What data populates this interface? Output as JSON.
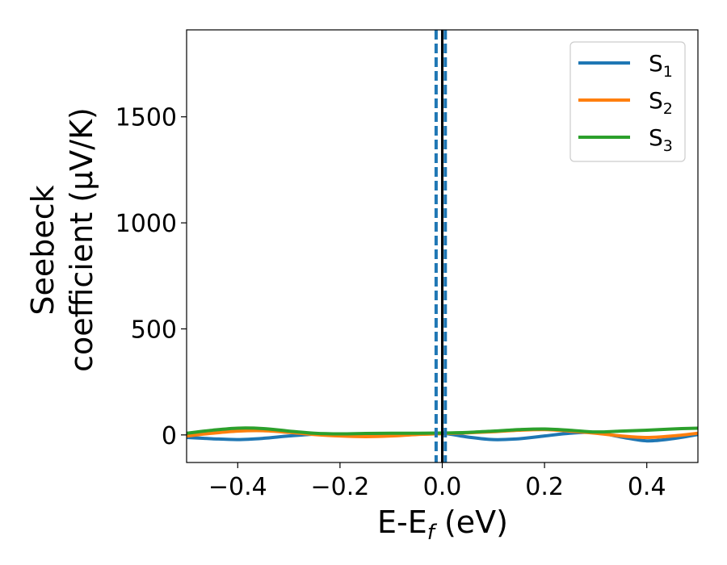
{
  "chart_data": {
    "type": "line",
    "xlabel": "E-E",
    "xlabel_sub": "f",
    "xlabel_unit": " (eV)",
    "ylabel_line1": "Seebeck",
    "ylabel_line2": "coefficient  (μV/K)",
    "xlim": [
      -0.5,
      0.5
    ],
    "ylim": [
      -130,
      1910
    ],
    "xticks": [
      -0.4,
      -0.2,
      0.0,
      0.2,
      0.4
    ],
    "xtick_labels": [
      "−0.4",
      "−0.2",
      "0.0",
      "0.2",
      "0.4"
    ],
    "yticks": [
      0,
      500,
      1000,
      1500
    ],
    "ytick_labels": [
      "0",
      "500",
      "1000",
      "1500"
    ],
    "legend_position": "top-right",
    "series": [
      {
        "name": "S",
        "subscript": "1",
        "color": "#1f77b4",
        "x": [
          -0.5,
          -0.45,
          -0.4,
          -0.35,
          -0.3,
          -0.25,
          -0.2,
          -0.15,
          -0.1,
          -0.05,
          0.0,
          0.05,
          0.1,
          0.15,
          0.2,
          0.25,
          0.3,
          0.35,
          0.4,
          0.45,
          0.5
        ],
        "y": [
          -12,
          -18,
          -22,
          -16,
          -5,
          3,
          2,
          -3,
          -2,
          3,
          8,
          -10,
          -22,
          -18,
          -5,
          8,
          12,
          -10,
          -28,
          -18,
          2
        ]
      },
      {
        "name": "S",
        "subscript": "2",
        "color": "#ff7f0e",
        "x": [
          -0.5,
          -0.45,
          -0.4,
          -0.35,
          -0.3,
          -0.25,
          -0.2,
          -0.15,
          -0.1,
          -0.05,
          0.0,
          0.05,
          0.1,
          0.15,
          0.2,
          0.25,
          0.3,
          0.35,
          0.4,
          0.45,
          0.5
        ],
        "y": [
          -5,
          8,
          18,
          20,
          12,
          2,
          -5,
          -8,
          -5,
          2,
          6,
          10,
          15,
          22,
          25,
          18,
          8,
          -5,
          -12,
          -5,
          8
        ]
      },
      {
        "name": "S",
        "subscript": "3",
        "color": "#2ca02c",
        "x": [
          -0.5,
          -0.45,
          -0.4,
          -0.35,
          -0.3,
          -0.25,
          -0.2,
          -0.15,
          -0.1,
          -0.05,
          0.0,
          0.05,
          0.1,
          0.15,
          0.2,
          0.25,
          0.3,
          0.35,
          0.4,
          0.45,
          0.5
        ],
        "y": [
          8,
          22,
          32,
          30,
          18,
          8,
          5,
          7,
          8,
          8,
          9,
          12,
          18,
          25,
          28,
          22,
          14,
          18,
          22,
          28,
          32
        ]
      }
    ],
    "vlines": [
      {
        "x": -0.012,
        "style": "dashed",
        "color": "#1f77b4"
      },
      {
        "x": 0.006,
        "style": "dashed",
        "color": "#1f77b4"
      },
      {
        "x": 0.0,
        "style": "solid",
        "color": "#000000"
      }
    ]
  }
}
